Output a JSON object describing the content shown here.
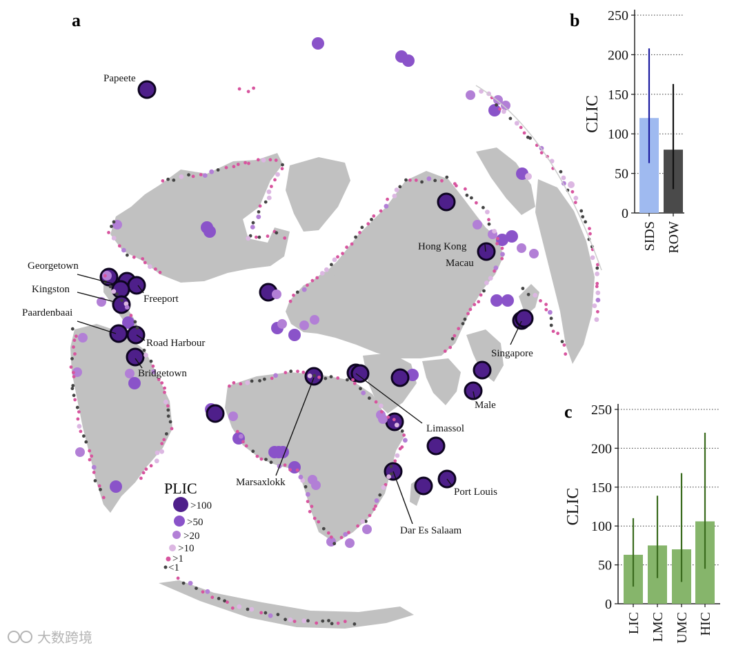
{
  "panel_labels": {
    "a": "a",
    "b": "b",
    "c": "c"
  },
  "colors": {
    "land": "#c1c1c1",
    "sids_bar": "#9fbaf0",
    "sids_err": "#1b1ba0",
    "row_bar": "#4a4a4a",
    "row_err": "#111111",
    "income_bar": "#86b56b",
    "income_err": "#3a6b1e",
    "plic_100": "#4e1f8a",
    "plic_50": "#8a53c9",
    "plic_20": "#b27fd6",
    "plic_10": "#dcb7e2",
    "plic_1": "#d7549e",
    "plic_lt1": "#444444"
  },
  "map": {
    "legend_title": "PLIC",
    "legend_items": [
      ">100",
      ">50",
      ">20",
      ">10",
      ">1",
      "<1"
    ],
    "ports": {
      "papeete": "Papeete",
      "georgetown": "Georgetown",
      "kingston": "Kingston",
      "paardenbaai": "Paardenbaai",
      "freeport": "Freeport",
      "road_harbour": "Road Harbour",
      "bridgetown": "Bridgetown",
      "hong_kong": "Hong Kong",
      "macau": "Macau",
      "singapore": "Singapore",
      "male": "Male",
      "limassol": "Limassol",
      "marsaxlokk": "Marsaxlokk",
      "port_louis": "Port Louis",
      "dar_es_salaam": "Dar Es Salaam"
    }
  },
  "chart_data": [
    {
      "type": "bar",
      "panel": "b",
      "title": "",
      "xlabel": "",
      "ylabel": "CLIC",
      "categories": [
        "SIDS",
        "ROW"
      ],
      "values": [
        120,
        80
      ],
      "error_low": [
        63,
        30
      ],
      "error_high": [
        208,
        163
      ],
      "ylim": [
        0,
        250
      ],
      "yticks": [
        0,
        50,
        100,
        150,
        200,
        250
      ],
      "grid": "horizontal dotted"
    },
    {
      "type": "bar",
      "panel": "c",
      "title": "",
      "xlabel": "",
      "ylabel": "CLIC",
      "categories": [
        "LIC",
        "LMC",
        "UMC",
        "HIC"
      ],
      "values": [
        63,
        75,
        70,
        106
      ],
      "error_low": [
        22,
        33,
        28,
        45
      ],
      "error_high": [
        110,
        139,
        168,
        220
      ],
      "ylim": [
        0,
        250
      ],
      "yticks": [
        0,
        50,
        100,
        150,
        200,
        250
      ],
      "grid": "horizontal dotted"
    }
  ],
  "watermark": "大数跨境"
}
